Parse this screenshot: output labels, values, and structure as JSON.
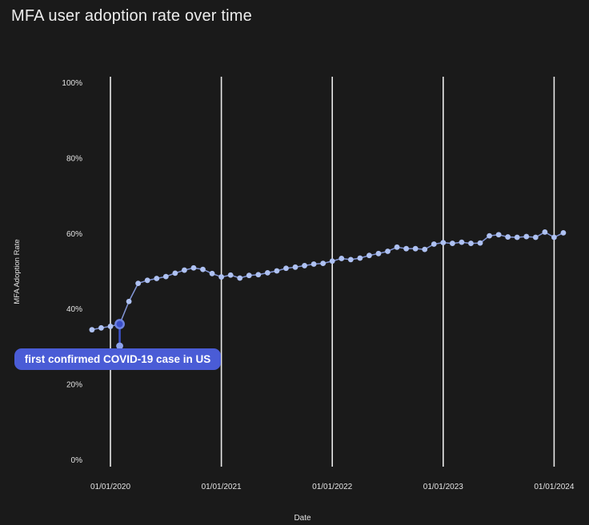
{
  "chart_data": {
    "type": "line",
    "title": "MFA user adoption rate over time",
    "xlabel": "Date",
    "ylabel": "MFA Adoption Rate",
    "ylim": [
      0,
      100
    ],
    "grid": "vertical-only",
    "legend": "none",
    "y_ticks": [
      {
        "label": "100%",
        "value": 100
      },
      {
        "label": "80%",
        "value": 80
      },
      {
        "label": "60%",
        "value": 60
      },
      {
        "label": "40%",
        "value": 40
      },
      {
        "label": "20%",
        "value": 20
      },
      {
        "label": "0%",
        "value": 0
      }
    ],
    "x_ticks": [
      {
        "label": "01/01/2020",
        "month_index": 2
      },
      {
        "label": "01/01/2021",
        "month_index": 14
      },
      {
        "label": "01/01/2022",
        "month_index": 26
      },
      {
        "label": "01/01/2023",
        "month_index": 38
      },
      {
        "label": "01/01/2024",
        "month_index": 50
      }
    ],
    "x": [
      "2019-11",
      "2019-12",
      "2020-01",
      "2020-02",
      "2020-03",
      "2020-04",
      "2020-05",
      "2020-06",
      "2020-07",
      "2020-08",
      "2020-09",
      "2020-10",
      "2020-11",
      "2020-12",
      "2021-01",
      "2021-02",
      "2021-03",
      "2021-04",
      "2021-05",
      "2021-06",
      "2021-07",
      "2021-08",
      "2021-09",
      "2021-10",
      "2021-11",
      "2021-12",
      "2022-01",
      "2022-02",
      "2022-03",
      "2022-04",
      "2022-05",
      "2022-06",
      "2022-07",
      "2022-08",
      "2022-09",
      "2022-10",
      "2022-11",
      "2022-12",
      "2023-01",
      "2023-02",
      "2023-03",
      "2023-04",
      "2023-05",
      "2023-06",
      "2023-07",
      "2023-08",
      "2023-09",
      "2023-10",
      "2023-11",
      "2023-12",
      "2024-01",
      "2024-02"
    ],
    "values": [
      34.5,
      35.0,
      35.4,
      36.0,
      42.0,
      46.8,
      47.6,
      48.1,
      48.6,
      49.5,
      50.3,
      50.9,
      50.5,
      49.4,
      48.5,
      49.0,
      48.2,
      48.9,
      49.1,
      49.6,
      50.1,
      50.8,
      51.1,
      51.5,
      51.9,
      52.1,
      52.7,
      53.4,
      53.1,
      53.5,
      54.2,
      54.7,
      55.3,
      56.4,
      56.0,
      56.0,
      55.8,
      57.2,
      57.6,
      57.4,
      57.7,
      57.4,
      57.5,
      59.4,
      59.7,
      59.1,
      59.0,
      59.2,
      59.0,
      60.4,
      59.0,
      60.2
    ],
    "annotation": {
      "label": "first confirmed COVID-19 case in US",
      "point_index": 3,
      "point_date": "2020-02",
      "point_value": 36.0
    },
    "colors": {
      "background": "#1a1a1a",
      "gridline": "#e9e9e9",
      "tick_text": "#e3e3e3",
      "title_text": "#ededed",
      "line": "#8396d6",
      "dot": "#aec1f2",
      "annotation_bg": "#4a5cd6",
      "annotation_text": "#ffffff",
      "highlight_fill": "#3a4ec8",
      "highlight_ring": "#6e83e0",
      "connector": "#3d52c8",
      "connector_dot": "#8fa3ec"
    }
  }
}
